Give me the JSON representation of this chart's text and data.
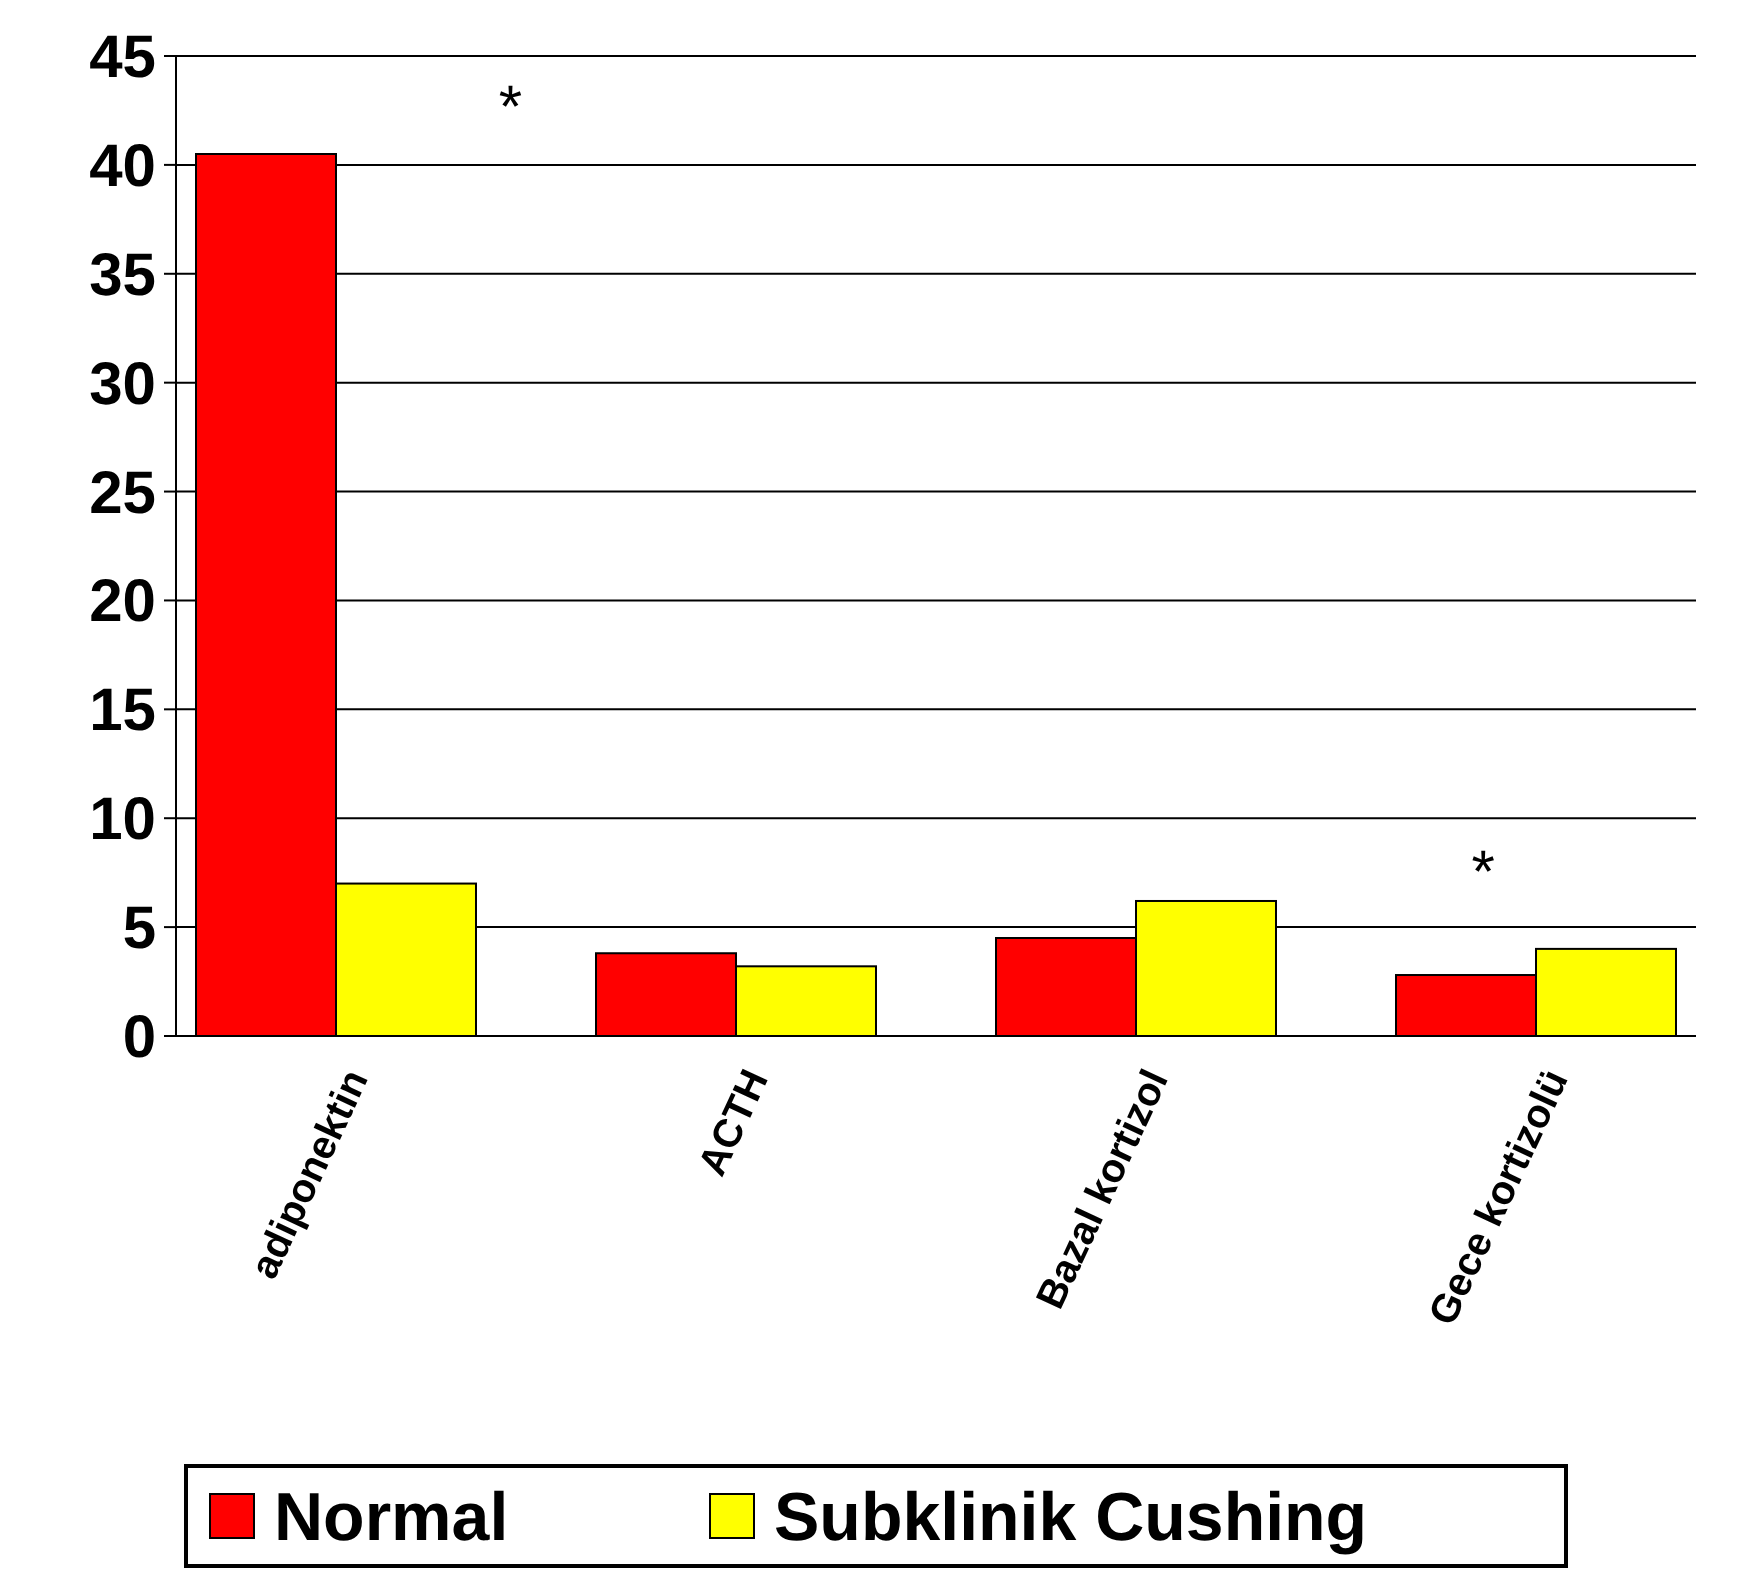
{
  "chart_data": {
    "type": "bar",
    "categories": [
      "adiponektin",
      "ACTH",
      "Bazal kortizol",
      "Gece kortizolü"
    ],
    "series": [
      {
        "name": "Normal",
        "color": "#ff0000",
        "values": [
          40.5,
          3.8,
          4.5,
          2.8
        ]
      },
      {
        "name": "Subklinik Cushing",
        "color": "#ffff00",
        "values": [
          7,
          3.2,
          6.2,
          4
        ]
      }
    ],
    "ylim": [
      0,
      45
    ],
    "yticks": [
      0,
      5,
      10,
      15,
      20,
      25,
      30,
      35,
      40,
      45
    ],
    "grid": "y",
    "legend": "bottom",
    "annotations": [
      "*",
      "*"
    ]
  }
}
